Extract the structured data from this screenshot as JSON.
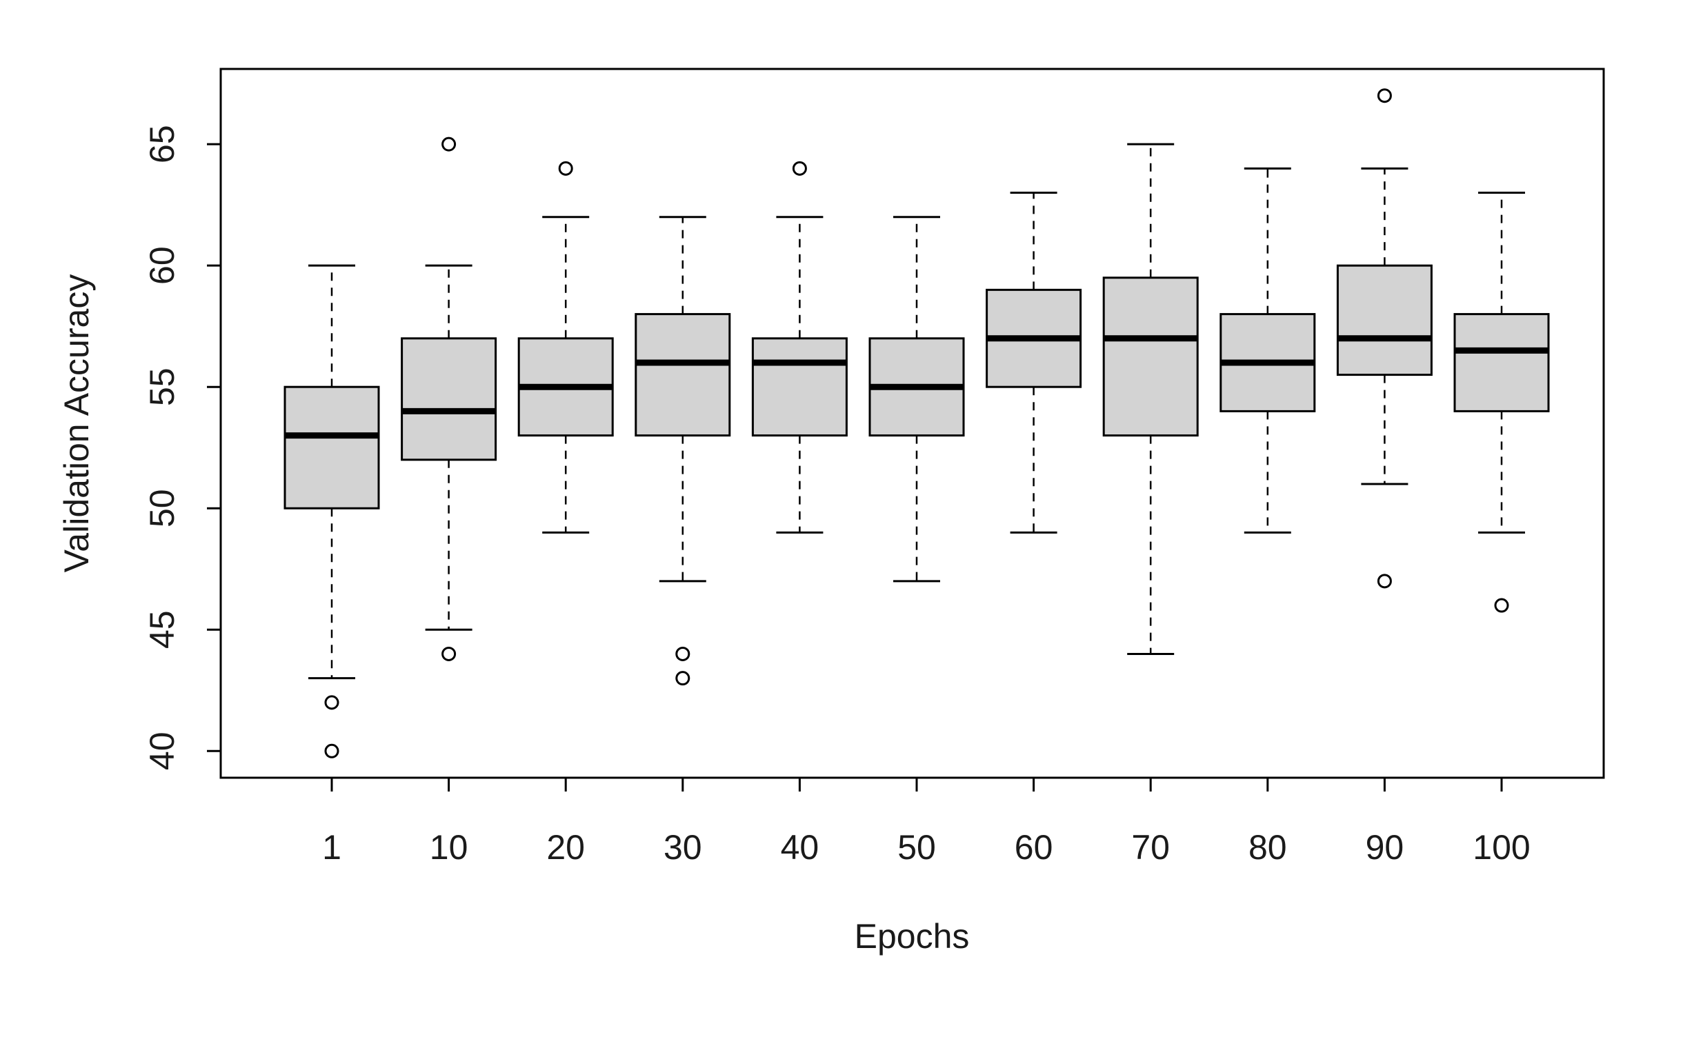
{
  "chart_data": {
    "type": "boxplot",
    "title": "",
    "xlabel": "Epochs",
    "ylabel": "Validation Accuracy",
    "categories": [
      "1",
      "10",
      "20",
      "30",
      "40",
      "50",
      "60",
      "70",
      "80",
      "90",
      "100"
    ],
    "boxes": [
      {
        "category": "1",
        "whisker_low": 43,
        "q1": 50,
        "median": 53,
        "q3": 55,
        "whisker_high": 60,
        "outliers": [
          42,
          40
        ]
      },
      {
        "category": "10",
        "whisker_low": 45,
        "q1": 52,
        "median": 54,
        "q3": 57,
        "whisker_high": 60,
        "outliers": [
          65,
          44
        ]
      },
      {
        "category": "20",
        "whisker_low": 49,
        "q1": 53,
        "median": 55,
        "q3": 57,
        "whisker_high": 62,
        "outliers": [
          64
        ]
      },
      {
        "category": "30",
        "whisker_low": 47,
        "q1": 53,
        "median": 56,
        "q3": 58,
        "whisker_high": 62,
        "outliers": [
          44,
          43
        ]
      },
      {
        "category": "40",
        "whisker_low": 49,
        "q1": 53,
        "median": 56,
        "q3": 57,
        "whisker_high": 62,
        "outliers": [
          64
        ]
      },
      {
        "category": "50",
        "whisker_low": 47,
        "q1": 53,
        "median": 55,
        "q3": 57,
        "whisker_high": 62,
        "outliers": []
      },
      {
        "category": "60",
        "whisker_low": 49,
        "q1": 55,
        "median": 57,
        "q3": 59,
        "whisker_high": 63,
        "outliers": []
      },
      {
        "category": "70",
        "whisker_low": 44,
        "q1": 53,
        "median": 57,
        "q3": 59.5,
        "whisker_high": 65,
        "outliers": []
      },
      {
        "category": "80",
        "whisker_low": 49,
        "q1": 54,
        "median": 56,
        "q3": 58,
        "whisker_high": 64,
        "outliers": []
      },
      {
        "category": "90",
        "whisker_low": 51,
        "q1": 55.5,
        "median": 57,
        "q3": 60,
        "whisker_high": 64,
        "outliers": [
          67,
          47
        ]
      },
      {
        "category": "100",
        "whisker_low": 49,
        "q1": 54,
        "median": 56.5,
        "q3": 58,
        "whisker_high": 63,
        "outliers": [
          46
        ]
      }
    ],
    "y_ticks": [
      "40",
      "45",
      "50",
      "55",
      "60",
      "65"
    ],
    "ylim": [
      38.9,
      68.1
    ],
    "grid": false,
    "legend": "none",
    "colors": {
      "box_fill": "#d3d3d3",
      "stroke": "#000000"
    }
  }
}
